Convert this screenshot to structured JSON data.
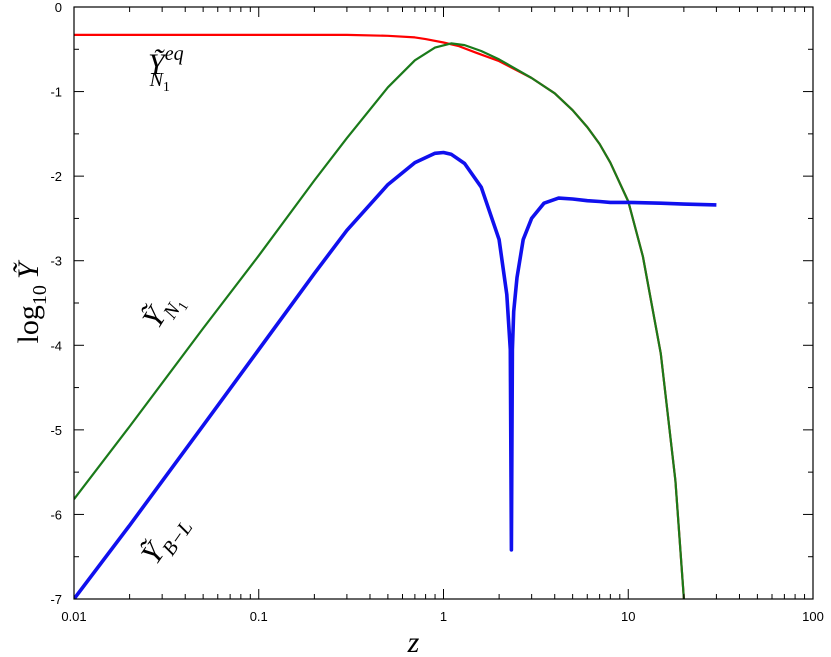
{
  "chart_data": {
    "type": "line",
    "xlabel": "z",
    "ylabel_prefix": "log",
    "ylabel_sub": "10",
    "ylabel_var": "Ỹ",
    "x_scale": "log",
    "xlim": [
      0.01,
      100
    ],
    "ylim": [
      -7,
      0
    ],
    "x_ticks": [
      0.01,
      0.1,
      1,
      10,
      100
    ],
    "x_tick_labels": [
      "0.01",
      "0.1",
      "1",
      "10",
      "100"
    ],
    "y_ticks": [
      0,
      -1,
      -2,
      -3,
      -4,
      -5,
      -6,
      -7
    ],
    "y_tick_labels": [
      "0",
      "-1",
      "-2",
      "-3",
      "-4",
      "-5",
      "-6",
      "-7"
    ],
    "grid": false,
    "legend": "none",
    "series": [
      {
        "key": "eq",
        "label_main": "Ỹ",
        "label_sup": "eq",
        "label_sub": "N",
        "label_subsub": "1",
        "color": "#ff0000",
        "x": [
          0.01,
          0.1,
          0.3,
          0.5,
          0.7,
          0.8,
          1.0,
          1.2,
          1.5,
          2,
          3,
          4,
          5,
          6,
          7,
          8,
          10,
          12,
          15,
          18,
          20
        ],
        "y": [
          -0.33,
          -0.33,
          -0.33,
          -0.34,
          -0.36,
          -0.38,
          -0.42,
          -0.46,
          -0.54,
          -0.64,
          -0.84,
          -1.02,
          -1.22,
          -1.42,
          -1.62,
          -1.84,
          -2.3,
          -2.95,
          -4.1,
          -5.6,
          -7.0
        ]
      },
      {
        "key": "n1",
        "label_main": "Ỹ",
        "label_sub": "N",
        "label_subsub": "1",
        "color": "#1a7a1a",
        "x": [
          0.01,
          0.02,
          0.05,
          0.1,
          0.2,
          0.3,
          0.5,
          0.7,
          0.9,
          1.1,
          1.3,
          1.6,
          2,
          3,
          4,
          5,
          6,
          7,
          8,
          10,
          12,
          15,
          18,
          20
        ],
        "y": [
          -5.82,
          -4.96,
          -3.8,
          -2.94,
          -2.05,
          -1.55,
          -0.95,
          -0.63,
          -0.48,
          -0.43,
          -0.45,
          -0.52,
          -0.62,
          -0.84,
          -1.02,
          -1.22,
          -1.42,
          -1.62,
          -1.84,
          -2.3,
          -2.95,
          -4.1,
          -5.6,
          -7.0
        ]
      },
      {
        "key": "bl",
        "label_main": "Ỹ",
        "label_sub": "B−L",
        "color": "#1010ee",
        "x": [
          0.01,
          0.02,
          0.05,
          0.1,
          0.2,
          0.3,
          0.5,
          0.7,
          0.9,
          1.0,
          1.1,
          1.3,
          1.6,
          2.0,
          2.2,
          2.3,
          2.33,
          2.36,
          2.4,
          2.5,
          2.7,
          3.0,
          3.5,
          4.2,
          5,
          6,
          7,
          8,
          10,
          15,
          20,
          30
        ],
        "y": [
          -7.0,
          -6.13,
          -4.95,
          -4.05,
          -3.15,
          -2.64,
          -2.1,
          -1.84,
          -1.73,
          -1.72,
          -1.74,
          -1.85,
          -2.13,
          -2.75,
          -3.4,
          -4.05,
          -6.42,
          -4.05,
          -3.6,
          -3.2,
          -2.75,
          -2.5,
          -2.32,
          -2.26,
          -2.27,
          -2.29,
          -2.3,
          -2.31,
          -2.31,
          -2.32,
          -2.33,
          -2.34
        ]
      }
    ]
  }
}
